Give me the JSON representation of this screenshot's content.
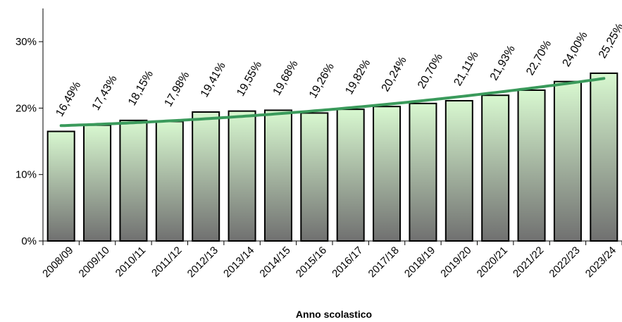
{
  "chart_data": {
    "type": "bar",
    "title": "",
    "xlabel": "Anno scolastico",
    "ylabel": "",
    "categories": [
      "2008/09",
      "2009/10",
      "2010/11",
      "2011/12",
      "2012/13",
      "2013/14",
      "2014/15",
      "2015/16",
      "2016/17",
      "2017/18",
      "2018/19",
      "2019/20",
      "2020/21",
      "2021/22",
      "2022/23",
      "2023/24"
    ],
    "values": [
      16.49,
      17.43,
      18.15,
      17.98,
      19.41,
      19.55,
      19.68,
      19.26,
      19.82,
      20.24,
      20.7,
      21.11,
      21.93,
      22.7,
      24.0,
      25.25
    ],
    "data_labels": [
      "16,49%",
      "17,43%",
      "18,15%",
      "17,98%",
      "19,41%",
      "19,55%",
      "19,68%",
      "19,26%",
      "19,82%",
      "20,24%",
      "20,70%",
      "21,11%",
      "21,93%",
      "22,70%",
      "24,00%",
      "25,25%"
    ],
    "ylim": [
      0,
      35
    ],
    "yticks": [
      0,
      10,
      20,
      30
    ],
    "ytick_labels": [
      "0%",
      "10%",
      "20%",
      "30%"
    ],
    "unit": "%",
    "trendline": {
      "type": "polynomial",
      "color": "#3a9a5b"
    },
    "colors": {
      "bar_top": "#d8f8d0",
      "bar_bottom": "#707070",
      "bar_stroke": "#000000"
    },
    "grid": false,
    "legend": "none"
  }
}
